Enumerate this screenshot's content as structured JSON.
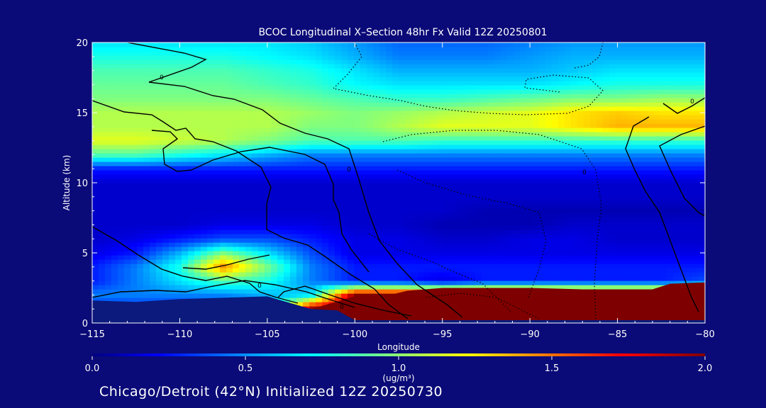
{
  "chart_data": {
    "type": "heatmap",
    "title": "BCOC Longitudinal X–Section 48hr  Fx Valid 12Z 20250801",
    "xlabel": "Longitude",
    "ylabel": "Altitude (km)",
    "xlim": [
      -115,
      -80
    ],
    "ylim": [
      0,
      20
    ],
    "x_ticks": [
      -115,
      -110,
      -105,
      -100,
      -95,
      -90,
      -85,
      -80
    ],
    "x_tick_labels": [
      "−115",
      "−110",
      "−105",
      "−100",
      "−95",
      "−90",
      "−85",
      "−80"
    ],
    "y_ticks": [
      0,
      5,
      10,
      15,
      20
    ],
    "y_tick_labels": [
      "0",
      "5",
      "10",
      "15",
      "20"
    ],
    "colorbar": {
      "label": "(ug/m³)",
      "min": 0.0,
      "max": 2.0,
      "ticks": [
        0.0,
        0.5,
        1.0,
        1.5,
        2.0
      ],
      "tick_labels": [
        "0.0",
        "0.5",
        "1.0",
        "1.5",
        "2.0"
      ],
      "colormap": "jet"
    },
    "contour_labels": [
      "0",
      "0",
      "0",
      "0",
      "0",
      "0"
    ],
    "footer": "Chicago/Detroit (42°N) Initialized 12Z 20250730",
    "field": {
      "longitudes": [
        -115,
        -112.5,
        -110,
        -107.5,
        -105,
        -102.5,
        -100,
        -97.5,
        -95,
        -92.5,
        -90,
        -87.5,
        -85,
        -82.5,
        -80
      ],
      "altitudes": [
        0,
        1,
        2,
        3,
        4,
        5,
        6,
        7,
        8,
        9,
        10,
        11,
        12,
        13,
        14,
        15,
        16,
        17,
        18,
        19,
        20
      ],
      "values": [
        [
          0.3,
          0.3,
          0.3,
          0.4,
          0.6,
          2.0,
          2.0,
          2.0,
          2.0,
          2.0,
          2.0,
          2.0,
          2.0,
          2.0,
          2.0
        ],
        [
          0.3,
          0.3,
          0.3,
          0.4,
          0.6,
          2.0,
          2.0,
          2.0,
          2.0,
          2.0,
          2.0,
          2.0,
          2.0,
          2.0,
          2.0
        ],
        [
          0.5,
          0.5,
          0.5,
          0.5,
          0.6,
          0.7,
          2.0,
          2.0,
          2.0,
          2.0,
          2.0,
          2.0,
          2.0,
          2.0,
          2.0
        ],
        [
          0.3,
          0.5,
          0.7,
          0.9,
          0.8,
          0.5,
          0.3,
          0.3,
          0.2,
          0.3,
          0.3,
          0.3,
          0.3,
          0.3,
          0.4
        ],
        [
          0.3,
          0.5,
          0.8,
          1.5,
          1.0,
          0.5,
          0.3,
          0.3,
          0.3,
          0.3,
          0.3,
          0.3,
          0.3,
          0.3,
          0.3
        ],
        [
          0.2,
          0.3,
          0.6,
          1.0,
          0.7,
          0.4,
          0.2,
          0.2,
          0.2,
          0.2,
          0.2,
          0.2,
          0.2,
          0.2,
          0.2
        ],
        [
          0.15,
          0.2,
          0.3,
          0.4,
          0.4,
          0.3,
          0.2,
          0.2,
          0.15,
          0.15,
          0.2,
          0.2,
          0.15,
          0.15,
          0.15
        ],
        [
          0.15,
          0.15,
          0.15,
          0.2,
          0.2,
          0.2,
          0.15,
          0.15,
          0.1,
          0.1,
          0.1,
          0.15,
          0.15,
          0.15,
          0.15
        ],
        [
          0.15,
          0.15,
          0.15,
          0.15,
          0.15,
          0.15,
          0.15,
          0.15,
          0.15,
          0.1,
          0.1,
          0.1,
          0.1,
          0.1,
          0.1
        ],
        [
          0.15,
          0.15,
          0.15,
          0.15,
          0.15,
          0.15,
          0.15,
          0.15,
          0.15,
          0.15,
          0.15,
          0.15,
          0.15,
          0.15,
          0.15
        ],
        [
          0.15,
          0.15,
          0.15,
          0.15,
          0.15,
          0.15,
          0.15,
          0.15,
          0.15,
          0.15,
          0.15,
          0.15,
          0.15,
          0.15,
          0.15
        ],
        [
          0.3,
          0.3,
          0.3,
          0.3,
          0.3,
          0.3,
          0.3,
          0.3,
          0.3,
          0.3,
          0.3,
          0.3,
          0.3,
          0.3,
          0.3
        ],
        [
          0.9,
          0.9,
          0.8,
          0.7,
          0.6,
          0.5,
          0.5,
          0.5,
          0.5,
          0.5,
          0.5,
          0.5,
          0.5,
          0.5,
          0.5
        ],
        [
          1.2,
          1.2,
          1.15,
          1.1,
          1.0,
          0.9,
          0.9,
          0.9,
          0.85,
          0.85,
          0.85,
          0.85,
          0.85,
          0.85,
          0.85
        ],
        [
          1.1,
          1.1,
          1.1,
          1.1,
          1.1,
          1.0,
          1.0,
          1.1,
          1.2,
          1.2,
          1.2,
          1.3,
          1.4,
          1.4,
          1.4
        ],
        [
          1.1,
          1.1,
          1.1,
          1.1,
          1.1,
          1.05,
          1.0,
          1.05,
          1.1,
          1.15,
          1.2,
          1.3,
          1.35,
          1.3,
          1.3
        ],
        [
          1.0,
          1.0,
          1.0,
          1.0,
          1.0,
          0.95,
          0.9,
          0.85,
          0.85,
          0.9,
          0.95,
          1.0,
          1.0,
          1.05,
          1.05
        ],
        [
          0.95,
          0.95,
          0.95,
          0.95,
          0.9,
          0.85,
          0.75,
          0.7,
          0.7,
          0.7,
          0.7,
          0.75,
          0.8,
          0.8,
          0.8
        ],
        [
          0.9,
          0.9,
          0.9,
          0.9,
          0.85,
          0.8,
          0.7,
          0.6,
          0.6,
          0.6,
          0.6,
          0.65,
          0.7,
          0.7,
          0.7
        ],
        [
          0.8,
          0.8,
          0.8,
          0.8,
          0.75,
          0.7,
          0.6,
          0.5,
          0.5,
          0.5,
          0.55,
          0.6,
          0.6,
          0.6,
          0.6
        ],
        [
          0.7,
          0.7,
          0.7,
          0.7,
          0.7,
          0.65,
          0.55,
          0.45,
          0.45,
          0.45,
          0.5,
          0.55,
          0.55,
          0.55,
          0.55
        ]
      ]
    },
    "terrain_km": [
      [
        -115,
        1.6
      ],
      [
        -112.5,
        1.5
      ],
      [
        -110,
        1.7
      ],
      [
        -107.5,
        1.8
      ],
      [
        -105,
        1.9
      ],
      [
        -102.5,
        1.0
      ],
      [
        -101,
        0.9
      ],
      [
        -100,
        0.2
      ],
      [
        -80,
        0.2
      ]
    ],
    "red_layer_top_km": [
      [
        -102.5,
        1.0
      ],
      [
        -100,
        1.9
      ],
      [
        -98,
        2.0
      ],
      [
        -97,
        2.3
      ],
      [
        -95,
        2.5
      ],
      [
        -90,
        2.5
      ],
      [
        -87,
        2.4
      ],
      [
        -83,
        2.4
      ],
      [
        -82,
        2.8
      ],
      [
        -80,
        2.9
      ]
    ]
  }
}
